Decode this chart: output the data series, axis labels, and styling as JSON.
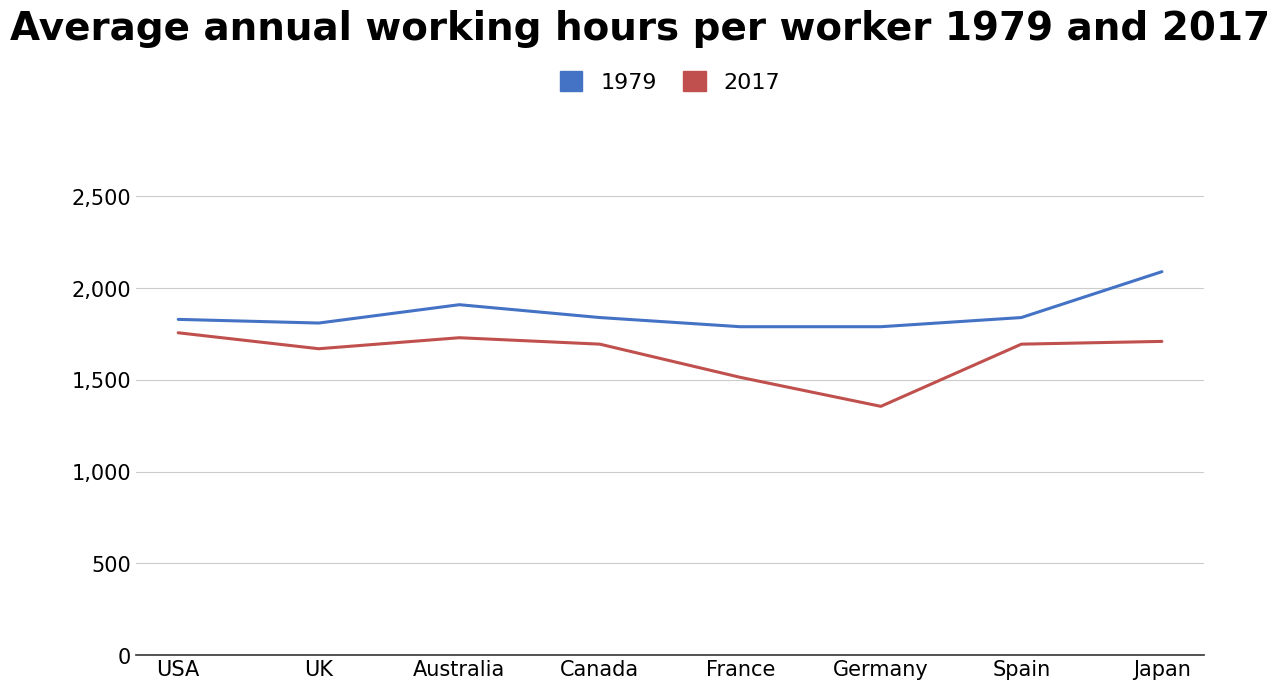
{
  "title": "Average annual working hours per worker 1979 and 2017",
  "categories": [
    "USA",
    "UK",
    "Australia",
    "Canada",
    "France",
    "Germany",
    "Spain",
    "Japan"
  ],
  "series_1979": [
    1830,
    1810,
    1910,
    1840,
    1790,
    1790,
    1840,
    2090
  ],
  "series_2017": [
    1757,
    1670,
    1730,
    1695,
    1514,
    1356,
    1695,
    1710
  ],
  "color_1979": "#4472C4",
  "color_2017": "#C0504D",
  "legend_labels": [
    "1979",
    "2017"
  ],
  "ylim": [
    0,
    2750
  ],
  "yticks": [
    0,
    500,
    1000,
    1500,
    2000,
    2500
  ],
  "background_color": "#ffffff",
  "title_fontsize": 28,
  "tick_fontsize": 15,
  "legend_fontsize": 16,
  "line_width": 2.2,
  "grid_color": "#cccccc"
}
